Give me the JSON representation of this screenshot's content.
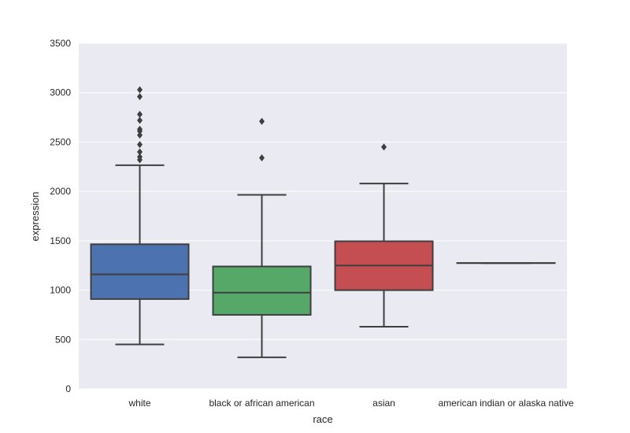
{
  "chart_data": {
    "type": "box",
    "title": "",
    "xlabel": "race",
    "ylabel": "expression",
    "ylim": [
      0,
      3500
    ],
    "yticks": [
      0,
      500,
      1000,
      1500,
      2000,
      2500,
      3000,
      3500
    ],
    "grid": true,
    "categories": [
      "white",
      "black or african american",
      "asian",
      "american indian or alaska native"
    ],
    "boxes": [
      {
        "category": "white",
        "color": "#4c72b0",
        "whisker_low": 450,
        "q1": 910,
        "median": 1160,
        "q3": 1465,
        "whisker_high": 2265,
        "outliers": [
          2320,
          2350,
          2400,
          2475,
          2570,
          2610,
          2630,
          2720,
          2780,
          2960,
          3030
        ]
      },
      {
        "category": "black or african american",
        "color": "#55a868",
        "whisker_low": 320,
        "q1": 750,
        "median": 975,
        "q3": 1240,
        "whisker_high": 1965,
        "outliers": [
          2340,
          2710
        ]
      },
      {
        "category": "asian",
        "color": "#c44e52",
        "whisker_low": 630,
        "q1": 1000,
        "median": 1250,
        "q3": 1495,
        "whisker_high": 2080,
        "outliers": [
          2450
        ]
      },
      {
        "category": "american indian or alaska native",
        "color": "#8172b2",
        "whisker_low": 1275,
        "q1": 1275,
        "median": 1275,
        "q3": 1275,
        "whisker_high": 1275,
        "outliers": []
      }
    ]
  }
}
